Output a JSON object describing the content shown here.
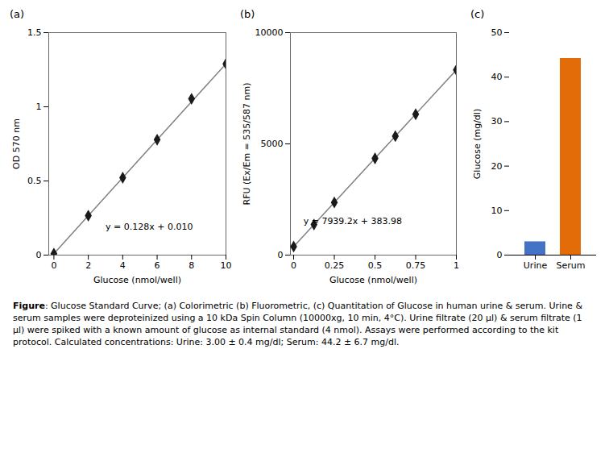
{
  "chart_data": [
    {
      "type": "scatter",
      "title": "(a)",
      "x": [
        0,
        2,
        4,
        6,
        8,
        10
      ],
      "values": [
        0.01,
        0.266,
        0.522,
        0.778,
        1.054,
        1.29
      ],
      "color": "#1a1a1a",
      "marker": "diamond",
      "trend_line": {
        "x": [
          0,
          10
        ],
        "values": [
          0.01,
          1.29
        ],
        "color": "#808080"
      },
      "annotations": [
        {
          "text": "y = 0.128x + 0.010",
          "x": 3.0,
          "y": 0.17
        }
      ],
      "xlabel": "Glucose (nmol/well)",
      "ylabel": "OD 570 nm",
      "xlim": [
        -0.3,
        10
      ],
      "ylim": [
        0,
        1.5
      ],
      "xticks": [
        0,
        2,
        4,
        6,
        8,
        10
      ],
      "yticks": [
        0,
        0.5,
        1,
        1.5
      ]
    },
    {
      "type": "scatter",
      "title": "(b)",
      "x": [
        0,
        0.125,
        0.25,
        0.5,
        0.625,
        0.75,
        1.0
      ],
      "values": [
        384,
        1375,
        2366,
        4347,
        5346,
        6330,
        8323
      ],
      "color": "#1a1a1a",
      "marker": "diamond",
      "trend_line": {
        "x": [
          0,
          1.0
        ],
        "values": [
          383.98,
          8323.18
        ],
        "color": "#808080"
      },
      "annotations": [
        {
          "text": "y = 7939.2x + 383.98",
          "x": 0.06,
          "y": 1400
        }
      ],
      "xlabel": "Glucose (nmol/well)",
      "ylabel": "RFU (Ex/Em = 535/587 nm)",
      "xlim": [
        -0.02,
        1.0
      ],
      "ylim": [
        0,
        10000
      ],
      "xticks": [
        0,
        0.25,
        0.5,
        0.75,
        1
      ],
      "yticks": [
        0,
        5000,
        10000
      ]
    },
    {
      "type": "bar",
      "title": "(c)",
      "categories": [
        "Urine",
        "Serum"
      ],
      "values": [
        3.0,
        44.2
      ],
      "colors": [
        "#4472C4",
        "#E36C09"
      ],
      "ylabel": "Glucose (mg/dl)",
      "ylim": [
        0,
        50
      ],
      "yticks": [
        0,
        10,
        20,
        30,
        40,
        50
      ]
    }
  ],
  "caption": {
    "bold": "Figure",
    "text": ": Glucose Standard Curve; (a) Colorimetric (b) Fluorometric, (c) Quantitation of Glucose in human urine & serum. Urine & serum samples were deproteinized using a 10 kDa Spin Column (10000xg, 10 min, 4°C). Urine filtrate (20 µl) & serum filtrate (1 µl) were spiked with a known amount of glucose as internal standard (4 nmol). Assays were performed according to the kit protocol. Calculated concentrations: Urine: 3.00 ± 0.4 mg/dl; Serum: 44.2 ± 6.7 mg/dl."
  }
}
